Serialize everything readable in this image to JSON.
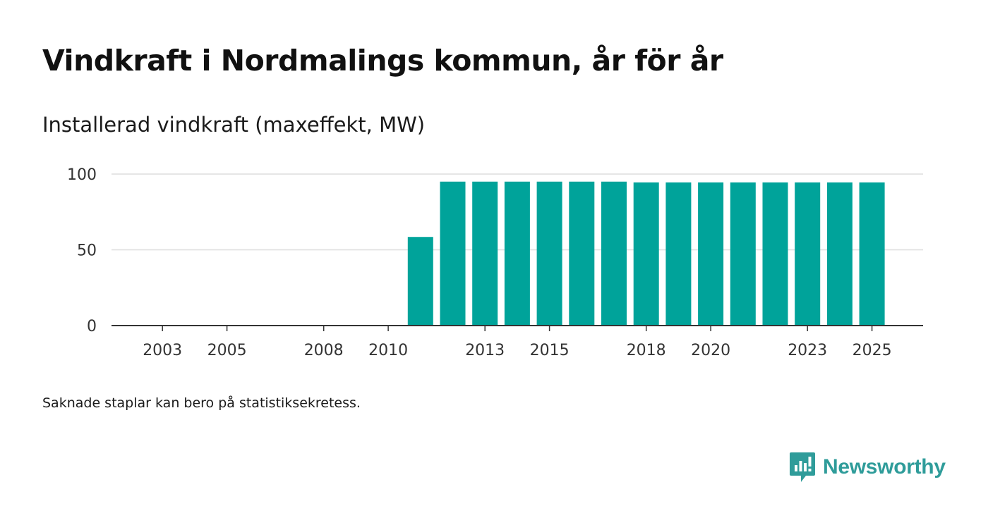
{
  "title": "Vindkraft i Nordmalings kommun, år för år",
  "subtitle": "Installerad vindkraft (maxeffekt, MW)",
  "footnote": "Saknade staplar kan bero på statistiksekretess.",
  "brand": {
    "name": "Newsworthy",
    "color": "#2f9c9a"
  },
  "chart_data": {
    "type": "bar",
    "title": "Installerad vindkraft (maxeffekt, MW)",
    "xlabel": "",
    "ylabel": "",
    "bar_color": "#00a39a",
    "categories": [
      2002,
      2003,
      2004,
      2005,
      2006,
      2007,
      2008,
      2009,
      2010,
      2011,
      2012,
      2013,
      2014,
      2015,
      2016,
      2017,
      2018,
      2019,
      2020,
      2021,
      2022,
      2023,
      2024,
      2025
    ],
    "values": [
      0,
      0,
      0,
      0,
      0,
      0,
      0,
      0,
      0,
      58.5,
      95,
      95,
      95,
      95,
      95,
      95,
      94.5,
      94.5,
      94.5,
      94.5,
      94.5,
      94.5,
      94.5,
      94.5
    ],
    "x_tick_labels": [
      "2003",
      "2005",
      "2008",
      "2010",
      "2013",
      "2015",
      "2018",
      "2020",
      "2023",
      "2025"
    ],
    "y_ticks": [
      0,
      50,
      100
    ],
    "ylim": [
      0,
      100
    ]
  }
}
